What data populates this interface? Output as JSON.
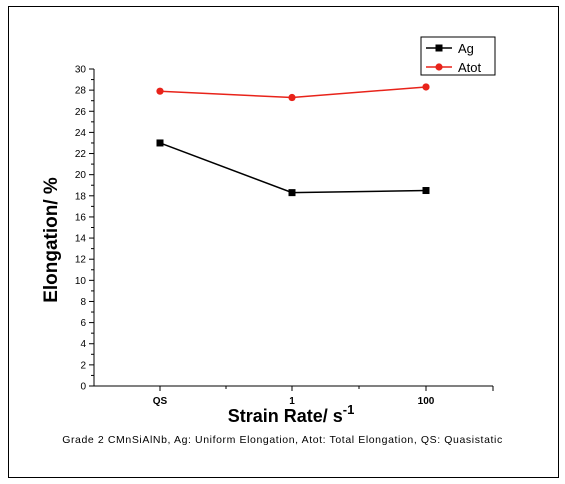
{
  "chart_data": {
    "type": "line",
    "categories": [
      "QS",
      "1",
      "100"
    ],
    "series": [
      {
        "name": "Ag",
        "values": [
          23.0,
          18.3,
          18.5
        ],
        "color": "#000000",
        "marker": "square"
      },
      {
        "name": "Atot",
        "values": [
          27.9,
          27.3,
          28.3
        ],
        "color": "#e8231a",
        "marker": "circle"
      }
    ],
    "xlabel": "Strain Rate/ s",
    "xlabel_sup": "-1",
    "ylabel": "Elongation/ %",
    "ylim": [
      0,
      30
    ],
    "y_major_step": 2,
    "grid": false,
    "legend_position": "top-right"
  },
  "caption": "Grade 2 CMnSiAlNb, Ag: Uniform Elongation, Atot: Total Elongation, QS: Quasistatic"
}
